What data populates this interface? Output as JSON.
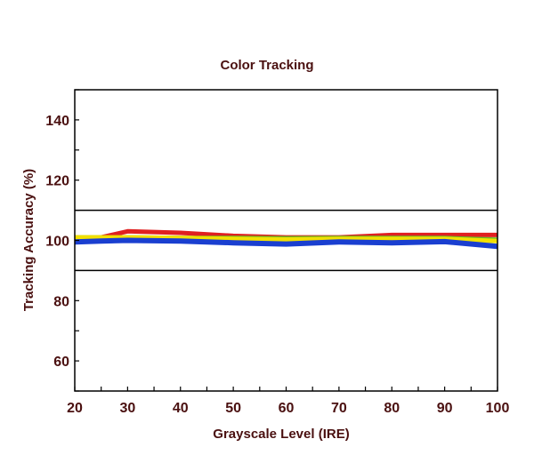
{
  "chart_data": {
    "type": "line",
    "title": "Color Tracking",
    "xlabel": "Grayscale Level (IRE)",
    "ylabel": "Tracking Accuracy (%)",
    "xlim": [
      20,
      100
    ],
    "ylim": [
      50,
      150
    ],
    "xticks": [
      20,
      30,
      40,
      50,
      60,
      70,
      80,
      90,
      100
    ],
    "yticks": [
      60,
      80,
      100,
      120,
      140
    ],
    "x": [
      20,
      25,
      30,
      40,
      50,
      60,
      70,
      80,
      90,
      100
    ],
    "reference_lines": [
      90,
      110
    ],
    "grid": false,
    "series": [
      {
        "color": "#e02020",
        "values": [
          100.5,
          101.0,
          103.0,
          102.5,
          101.5,
          101.0,
          101.0,
          101.8,
          101.8,
          101.8
        ]
      },
      {
        "color": "#66bb22",
        "values": [
          101.0,
          101.0,
          101.0,
          100.8,
          100.8,
          100.7,
          100.8,
          100.8,
          100.8,
          100.2
        ]
      },
      {
        "color": "#f2e000",
        "values": [
          101.0,
          101.0,
          101.0,
          100.8,
          100.5,
          100.3,
          100.5,
          100.5,
          100.5,
          99.8
        ]
      },
      {
        "color": "#1a3fd0",
        "values": [
          99.5,
          99.8,
          100.0,
          99.8,
          99.2,
          98.8,
          99.5,
          99.2,
          99.6,
          98.0
        ]
      }
    ],
    "colors": {
      "text": "#4a1010",
      "axis": "#000000",
      "reference_line": "#000000"
    }
  }
}
